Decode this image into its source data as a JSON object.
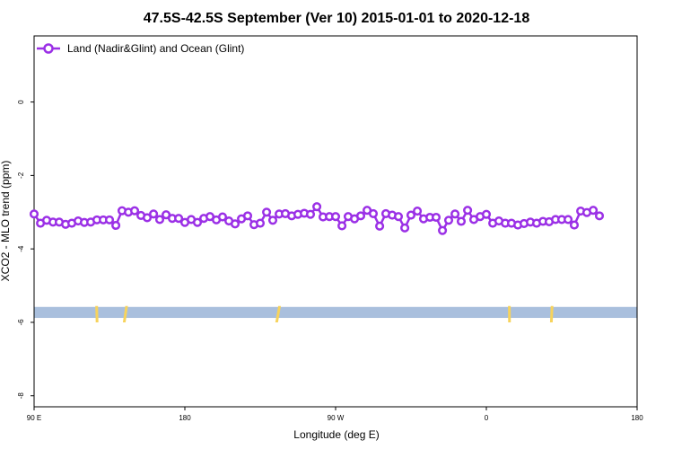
{
  "chart_data": {
    "type": "line",
    "title": "47.5S-42.5S September (Ver 10)   2015-01-01 to 2020-12-18",
    "xlabel": "Longitude (deg E)",
    "ylabel": "XCO2 - MLO trend (ppm)",
    "xlim": [
      90,
      450
    ],
    "ylim": [
      -8.3,
      1.8
    ],
    "x_ticks": [
      {
        "value": 90,
        "label": "90 E"
      },
      {
        "value": 180,
        "label": "180"
      },
      {
        "value": 270,
        "label": "90 W"
      },
      {
        "value": 360,
        "label": "0"
      },
      {
        "value": 450,
        "label": "180"
      }
    ],
    "y_ticks": [
      {
        "value": 0,
        "label": "0"
      },
      {
        "value": -2,
        "label": "-2"
      },
      {
        "value": -4,
        "label": "-4"
      },
      {
        "value": -6,
        "label": "-6"
      },
      {
        "value": -8,
        "label": "-8"
      }
    ],
    "legend": {
      "position": "top-left"
    },
    "series": [
      {
        "name": "Land (Nadir&Glint) and Ocean (Glint)",
        "color": "#9b30e6",
        "points": [
          [
            90.0,
            -3.05
          ],
          [
            93.8,
            -3.3
          ],
          [
            97.5,
            -3.22
          ],
          [
            101.3,
            -3.27
          ],
          [
            105.0,
            -3.27
          ],
          [
            108.8,
            -3.33
          ],
          [
            112.5,
            -3.3
          ],
          [
            116.3,
            -3.24
          ],
          [
            120.0,
            -3.28
          ],
          [
            123.8,
            -3.27
          ],
          [
            127.5,
            -3.21
          ],
          [
            131.3,
            -3.21
          ],
          [
            135.0,
            -3.21
          ],
          [
            138.8,
            -3.36
          ],
          [
            142.5,
            -2.96
          ],
          [
            146.3,
            -3.0
          ],
          [
            150.0,
            -2.96
          ],
          [
            153.8,
            -3.09
          ],
          [
            157.5,
            -3.15
          ],
          [
            161.3,
            -3.05
          ],
          [
            165.0,
            -3.2
          ],
          [
            168.8,
            -3.07
          ],
          [
            172.5,
            -3.17
          ],
          [
            176.3,
            -3.17
          ],
          [
            180.0,
            -3.28
          ],
          [
            183.8,
            -3.2
          ],
          [
            187.5,
            -3.28
          ],
          [
            191.3,
            -3.17
          ],
          [
            195.0,
            -3.12
          ],
          [
            198.8,
            -3.21
          ],
          [
            202.5,
            -3.13
          ],
          [
            206.3,
            -3.24
          ],
          [
            210.0,
            -3.32
          ],
          [
            213.8,
            -3.18
          ],
          [
            217.5,
            -3.1
          ],
          [
            221.3,
            -3.34
          ],
          [
            225.0,
            -3.3
          ],
          [
            228.8,
            -3.0
          ],
          [
            232.5,
            -3.22
          ],
          [
            236.3,
            -3.05
          ],
          [
            240.0,
            -3.04
          ],
          [
            243.8,
            -3.1
          ],
          [
            247.5,
            -3.06
          ],
          [
            251.3,
            -3.03
          ],
          [
            255.0,
            -3.06
          ],
          [
            258.8,
            -2.85
          ],
          [
            262.5,
            -3.13
          ],
          [
            266.3,
            -3.12
          ],
          [
            270.0,
            -3.12
          ],
          [
            273.8,
            -3.37
          ],
          [
            277.5,
            -3.12
          ],
          [
            281.3,
            -3.18
          ],
          [
            285.0,
            -3.1
          ],
          [
            288.8,
            -2.95
          ],
          [
            292.5,
            -3.04
          ],
          [
            296.3,
            -3.38
          ],
          [
            300.0,
            -3.04
          ],
          [
            303.8,
            -3.08
          ],
          [
            307.5,
            -3.12
          ],
          [
            311.3,
            -3.43
          ],
          [
            315.0,
            -3.08
          ],
          [
            318.8,
            -2.97
          ],
          [
            322.5,
            -3.18
          ],
          [
            326.3,
            -3.14
          ],
          [
            330.0,
            -3.14
          ],
          [
            333.8,
            -3.5
          ],
          [
            337.5,
            -3.22
          ],
          [
            341.3,
            -3.05
          ],
          [
            345.0,
            -3.25
          ],
          [
            348.8,
            -2.95
          ],
          [
            352.5,
            -3.2
          ],
          [
            356.3,
            -3.12
          ],
          [
            360.0,
            -3.06
          ],
          [
            363.8,
            -3.3
          ],
          [
            367.5,
            -3.24
          ],
          [
            371.3,
            -3.3
          ],
          [
            375.0,
            -3.3
          ],
          [
            378.8,
            -3.35
          ],
          [
            382.5,
            -3.31
          ],
          [
            386.3,
            -3.27
          ],
          [
            390.0,
            -3.3
          ],
          [
            393.8,
            -3.25
          ],
          [
            397.5,
            -3.26
          ],
          [
            401.3,
            -3.2
          ],
          [
            405.0,
            -3.2
          ],
          [
            408.8,
            -3.2
          ],
          [
            412.5,
            -3.35
          ],
          [
            416.3,
            -2.97
          ],
          [
            420.0,
            -3.01
          ],
          [
            423.8,
            -2.95
          ],
          [
            427.5,
            -3.1
          ]
        ]
      }
    ],
    "coverage_band": {
      "y_range": [
        -5.58,
        -5.88
      ],
      "color": "#a9bfdd",
      "land_color": "#f7d35c",
      "land_segments": [
        [
          126.8,
          127.6
        ],
        [
          143.0,
          145.5
        ],
        [
          234.0,
          236.8
        ],
        [
          373.0,
          374.0
        ],
        [
          398.0,
          399.5
        ]
      ]
    }
  }
}
